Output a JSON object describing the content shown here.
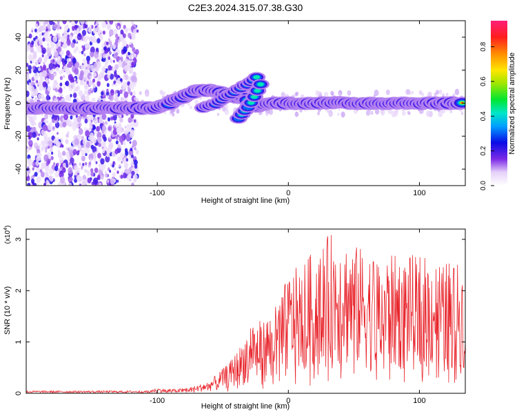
{
  "title": "C2E3.2024.315.07.38.G30",
  "chart_data": [
    {
      "type": "heatmap",
      "xlabel": "Height of straight line (km)",
      "ylabel": "Frequency (Hz)",
      "xlim": [
        -200,
        135
      ],
      "ylim": [
        -50,
        50
      ],
      "xticks": [
        -100,
        0,
        100
      ],
      "yticks": [
        -40,
        -20,
        0,
        20,
        40
      ],
      "colorbar": {
        "label": "Normalized spectral amplitude",
        "range": [
          0,
          0.95
        ],
        "ticks": [
          0.0,
          0.2,
          0.4,
          0.6,
          0.8
        ]
      },
      "ridge": [
        [
          -195,
          -3
        ],
        [
          -150,
          -3
        ],
        [
          -115,
          -3
        ],
        [
          -100,
          -3
        ],
        [
          -85,
          2
        ],
        [
          -72,
          7
        ],
        [
          -60,
          8
        ],
        [
          -50,
          6
        ],
        [
          -40,
          4
        ],
        [
          -32,
          3
        ],
        [
          -28,
          -2
        ],
        [
          -20,
          -1
        ],
        [
          -10,
          0
        ],
        [
          0,
          0
        ],
        [
          20,
          0
        ],
        [
          40,
          0
        ],
        [
          60,
          0
        ],
        [
          80,
          0
        ],
        [
          100,
          0
        ],
        [
          120,
          0
        ],
        [
          135,
          0
        ]
      ],
      "branches": [
        {
          "points": [
            [
              -65,
              -3
            ],
            [
              -55,
              0
            ],
            [
              -45,
              5
            ],
            [
              -37,
              9
            ],
            [
              -30,
              12
            ],
            [
              -24,
              16
            ]
          ]
        },
        {
          "points": [
            [
              -38,
              -9
            ],
            [
              -32,
              -4
            ],
            [
              -26,
              4
            ],
            [
              -21,
              12
            ]
          ]
        }
      ],
      "noise_region": {
        "x": [
          -200,
          -115
        ],
        "y": [
          -50,
          50
        ]
      }
    },
    {
      "type": "line",
      "xlabel": "Height of straight line (km)",
      "ylabel": "SNR (10 * v/v)",
      "yscale_label": "(x10",
      "yscale_exp": "4",
      "xlim": [
        -200,
        135
      ],
      "ylim": [
        0,
        3.2
      ],
      "xticks": [
        -100,
        0,
        100
      ],
      "yticks": [
        0,
        1,
        2,
        3
      ],
      "line_color": "#e8232a",
      "envelope": [
        [
          -200,
          0.04
        ],
        [
          -110,
          0.04
        ],
        [
          -100,
          0.1
        ],
        [
          -85,
          0.08
        ],
        [
          -70,
          0.15
        ],
        [
          -60,
          0.25
        ],
        [
          -45,
          0.6
        ],
        [
          -35,
          1.0
        ],
        [
          -28,
          1.5
        ],
        [
          -20,
          1.4
        ],
        [
          -10,
          1.7
        ],
        [
          0,
          2.3
        ],
        [
          20,
          2.8
        ],
        [
          35,
          3.2
        ],
        [
          50,
          2.9
        ],
        [
          70,
          2.7
        ],
        [
          100,
          2.7
        ],
        [
          135,
          2.5
        ]
      ]
    }
  ]
}
